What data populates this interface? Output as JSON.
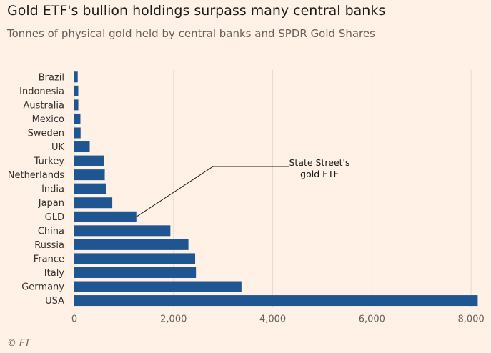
{
  "header": {
    "title": "Gold ETF's bullion holdings surpass many central banks",
    "subtitle": "Tonnes of physical gold held by central banks and SPDR Gold Shares"
  },
  "footer": {
    "source": "© FT"
  },
  "chart_data": {
    "type": "bar",
    "orientation": "horizontal",
    "categories": [
      "Brazil",
      "Indonesia",
      "Australia",
      "Mexico",
      "Sweden",
      "UK",
      "Turkey",
      "Netherlands",
      "India",
      "Japan",
      "GLD",
      "China",
      "Russia",
      "France",
      "Italy",
      "Germany",
      "USA"
    ],
    "values": [
      68,
      79,
      80,
      122,
      126,
      310,
      600,
      613,
      641,
      765,
      1250,
      1936,
      2300,
      2436,
      2452,
      3370,
      8134
    ],
    "xlim": [
      0,
      8200
    ],
    "xticks": [
      0,
      2000,
      4000,
      6000,
      8000
    ],
    "xtick_labels": [
      "0",
      "2,000",
      "4,000",
      "6,000",
      "8,000"
    ],
    "grid": true,
    "bar_color": "#1f5590",
    "annotation": {
      "lines": [
        "State Street's",
        "gold ETF"
      ],
      "target": "GLD"
    }
  }
}
